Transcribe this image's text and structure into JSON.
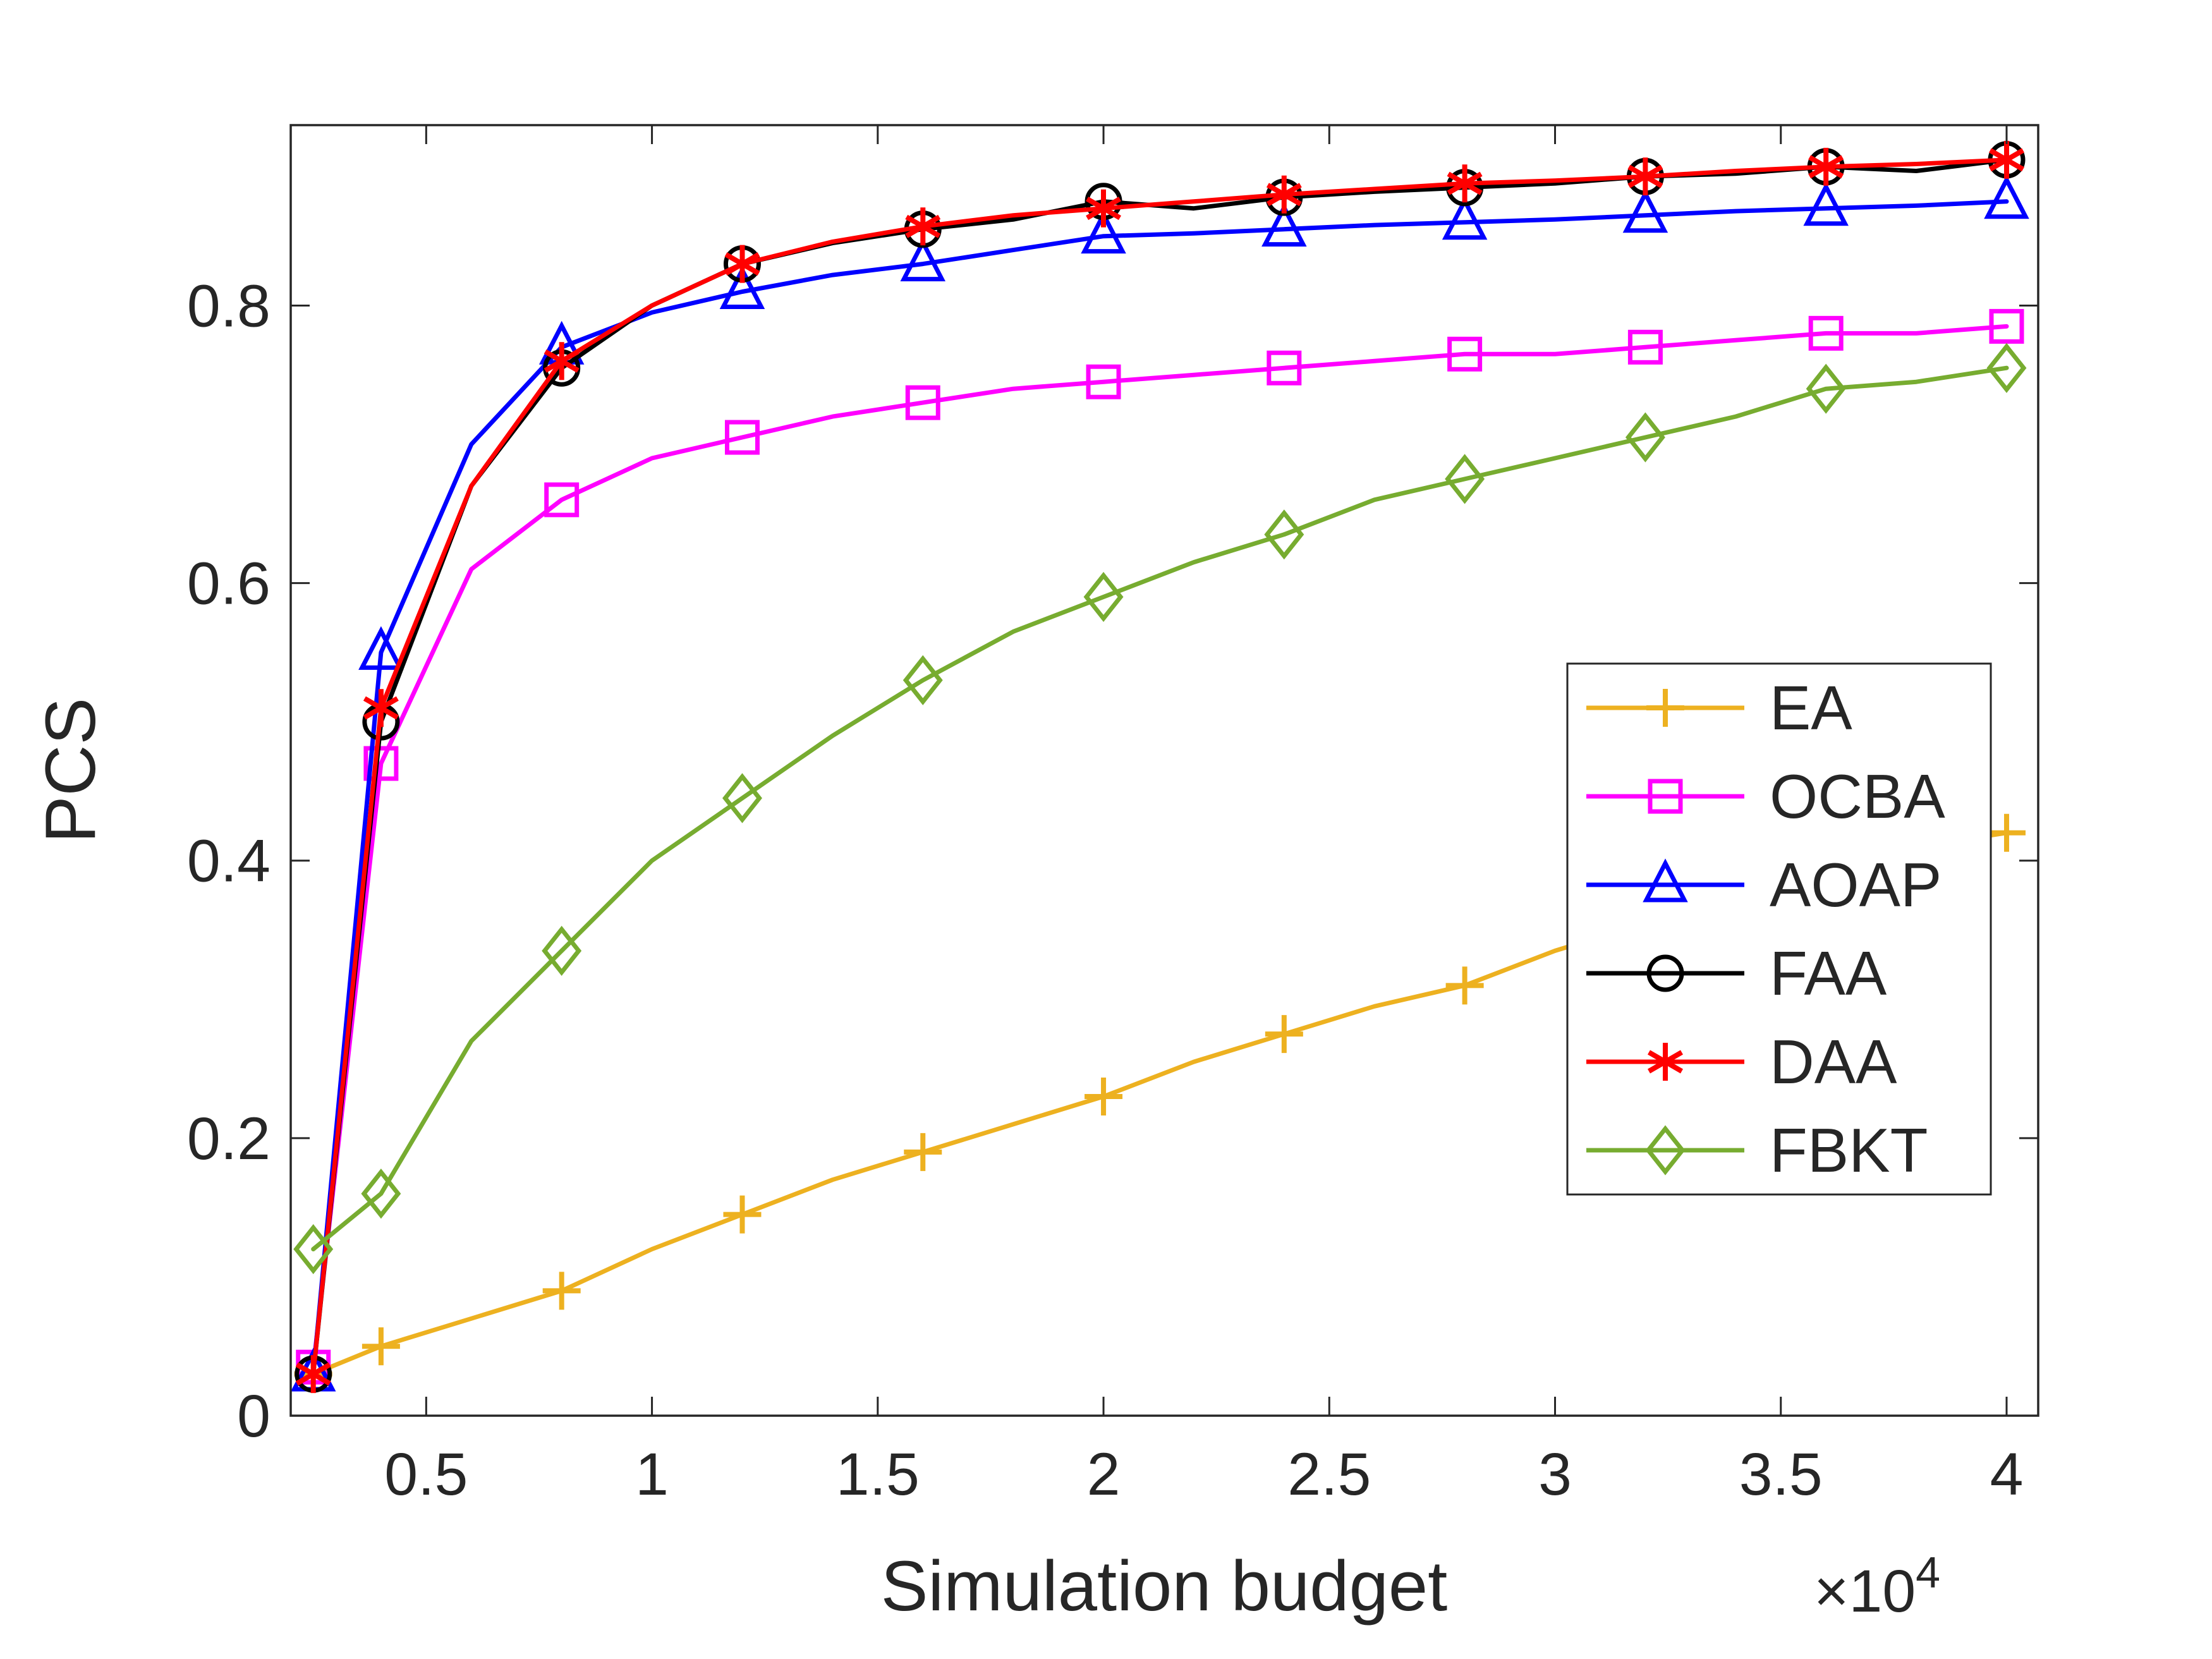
{
  "chart_data": {
    "type": "line",
    "title": "",
    "xlabel": "Simulation budget",
    "ylabel": "PCS",
    "x_multiplier": {
      "base": "×10",
      "exp": "4"
    },
    "xlim": [
      0.2,
      4.07
    ],
    "ylim": [
      0,
      0.93
    ],
    "x_ticks": [
      0.5,
      1,
      1.5,
      2,
      2.5,
      3,
      3.5,
      4
    ],
    "x_tick_labels": [
      "0.5",
      "1",
      "1.5",
      "2",
      "2.5",
      "3",
      "3.5",
      "4"
    ],
    "y_ticks": [
      0,
      0.2,
      0.4,
      0.6,
      0.8
    ],
    "y_tick_labels": [
      "0",
      "0.2",
      "0.4",
      "0.6",
      "0.8"
    ],
    "grid": false,
    "legend_position": "inside-lower-right",
    "x": [
      0.25,
      0.4,
      0.6,
      0.8,
      1.0,
      1.2,
      1.4,
      1.6,
      1.8,
      2.0,
      2.2,
      2.4,
      2.6,
      2.8,
      3.0,
      3.2,
      3.4,
      3.6,
      3.8,
      4.0
    ],
    "markers_at": [
      0.25,
      0.4,
      0.8,
      1.2,
      1.6,
      2.0,
      2.4,
      2.8,
      3.2,
      3.6,
      4.0
    ],
    "series": [
      {
        "name": "EA",
        "color": "#EDB120",
        "marker": "plus",
        "values": [
          0.03,
          0.05,
          0.07,
          0.09,
          0.12,
          0.145,
          0.17,
          0.19,
          0.21,
          0.23,
          0.255,
          0.275,
          0.295,
          0.31,
          0.335,
          0.355,
          0.375,
          0.395,
          0.41,
          0.42
        ]
      },
      {
        "name": "OCBA",
        "color": "#FF00FF",
        "marker": "square",
        "values": [
          0.035,
          0.47,
          0.61,
          0.66,
          0.69,
          0.705,
          0.72,
          0.73,
          0.74,
          0.745,
          0.75,
          0.755,
          0.76,
          0.765,
          0.765,
          0.77,
          0.775,
          0.78,
          0.78,
          0.785
        ]
      },
      {
        "name": "AOAP",
        "color": "#0000FF",
        "marker": "triangle",
        "values": [
          0.03,
          0.55,
          0.7,
          0.77,
          0.795,
          0.81,
          0.822,
          0.83,
          0.84,
          0.85,
          0.852,
          0.855,
          0.858,
          0.86,
          0.862,
          0.865,
          0.868,
          0.87,
          0.872,
          0.875
        ]
      },
      {
        "name": "FAA",
        "color": "#000000",
        "marker": "circle",
        "values": [
          0.03,
          0.5,
          0.67,
          0.755,
          0.8,
          0.83,
          0.845,
          0.855,
          0.862,
          0.875,
          0.87,
          0.878,
          0.882,
          0.885,
          0.888,
          0.893,
          0.895,
          0.9,
          0.897,
          0.905
        ]
      },
      {
        "name": "DAA",
        "color": "#FF0000",
        "marker": "asterisk",
        "values": [
          0.03,
          0.51,
          0.67,
          0.76,
          0.8,
          0.83,
          0.846,
          0.857,
          0.865,
          0.87,
          0.875,
          0.88,
          0.884,
          0.888,
          0.89,
          0.893,
          0.897,
          0.9,
          0.902,
          0.905
        ]
      },
      {
        "name": "FBKT",
        "color": "#77AC30",
        "marker": "diamond",
        "values": [
          0.12,
          0.16,
          0.27,
          0.335,
          0.4,
          0.445,
          0.49,
          0.53,
          0.565,
          0.59,
          0.615,
          0.635,
          0.66,
          0.675,
          0.69,
          0.705,
          0.72,
          0.74,
          0.745,
          0.755
        ]
      }
    ],
    "axis_color": "#262626",
    "background": "#FFFFFF"
  }
}
